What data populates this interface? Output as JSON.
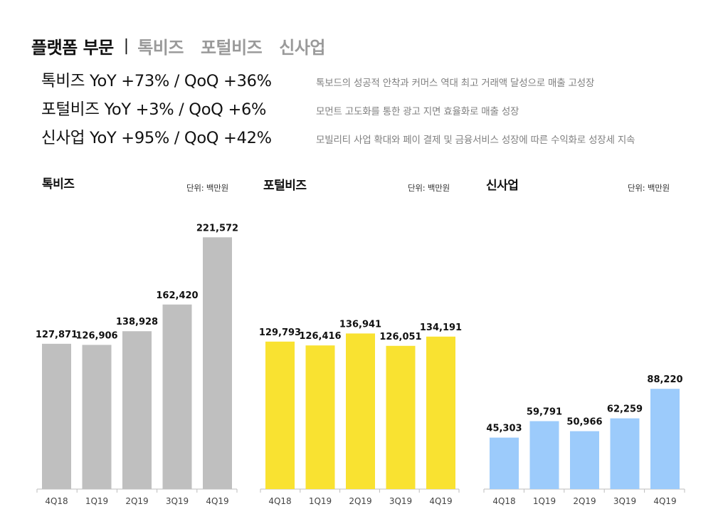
{
  "header": {
    "title": "플랫폼 부문",
    "separator": "|",
    "tabs": [
      "톡비즈",
      "포털비즈",
      "신사업"
    ]
  },
  "metrics": [
    {
      "label": "톡비즈  YoY +73% / QoQ +36%",
      "description": "톡보드의 성공적 안착과 커머스 역대 최고 거래액 달성으로 매출 고성장"
    },
    {
      "label": "포털비즈  YoY +3% / QoQ +6%",
      "description": "모먼트 고도화를 통한 광고 지면 효율화로 매출 성장"
    },
    {
      "label": "신사업  YoY +95% / QoQ +42%",
      "description": "모빌리티 사업 확대와 페이 결제 및 금융서비스 성장에 따른 수익화로 성장세 지속"
    }
  ],
  "chart_data": [
    {
      "type": "bar",
      "title": "톡비즈",
      "unit": "단위: 백만원",
      "categories": [
        "4Q18",
        "1Q19",
        "2Q19",
        "3Q19",
        "4Q19"
      ],
      "values": [
        127871,
        126906,
        138928,
        162420,
        221572
      ],
      "value_labels": [
        "127,871",
        "126,906",
        "138,928",
        "162,420",
        "221,572"
      ],
      "color": "#bfbfbf",
      "ylim": [
        0,
        260000
      ],
      "grid": false
    },
    {
      "type": "bar",
      "title": "포털비즈",
      "unit": "단위: 백만원",
      "categories": [
        "4Q18",
        "1Q19",
        "2Q19",
        "3Q19",
        "4Q19"
      ],
      "values": [
        129793,
        126416,
        136941,
        126051,
        134191
      ],
      "value_labels": [
        "129,793",
        "126,416",
        "136,941",
        "126,051",
        "134,191"
      ],
      "color": "#f9e231",
      "ylim": [
        0,
        260000
      ],
      "grid": false
    },
    {
      "type": "bar",
      "title": "신사업",
      "unit": "단위: 백만원",
      "categories": [
        "4Q18",
        "1Q19",
        "2Q19",
        "3Q19",
        "4Q19"
      ],
      "values": [
        45303,
        59791,
        50966,
        62259,
        88220
      ],
      "value_labels": [
        "45,303",
        "59,791",
        "50,966",
        "62,259",
        "88,220"
      ],
      "color": "#9ccbfb",
      "ylim": [
        0,
        260000
      ],
      "grid": false
    }
  ]
}
